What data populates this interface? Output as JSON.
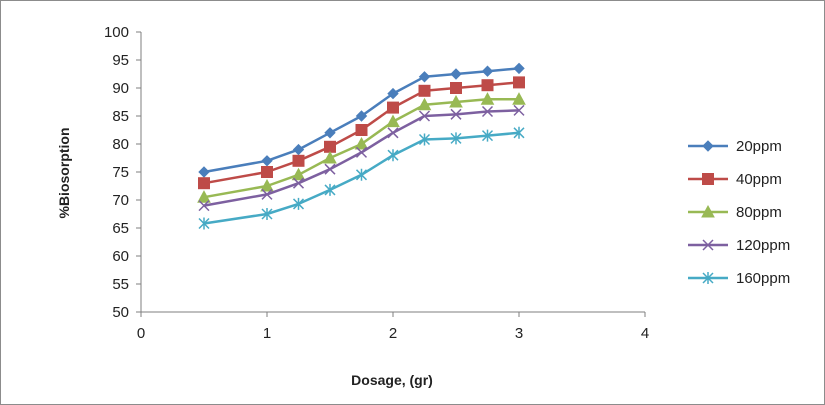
{
  "chart_data": {
    "type": "line",
    "title": "",
    "xlabel": "Dosage, (gr)",
    "ylabel": "%Biosorption",
    "xlim": [
      0,
      4
    ],
    "ylim": [
      50,
      100
    ],
    "x_ticks": [
      "0",
      "1",
      "2",
      "3",
      "4"
    ],
    "y_ticks": [
      "50",
      "55",
      "60",
      "65",
      "70",
      "75",
      "80",
      "85",
      "90",
      "95",
      "100"
    ],
    "grid": false,
    "legend_position": "right",
    "x": [
      0.5,
      1.0,
      1.25,
      1.5,
      1.75,
      2.0,
      2.25,
      2.5,
      2.75,
      3.0
    ],
    "series": [
      {
        "name": "20ppm",
        "color": "#4a7ebb",
        "marker": "diamond",
        "values": [
          75.0,
          77.0,
          79.0,
          82.0,
          85.0,
          89.0,
          92.0,
          92.5,
          93.0,
          93.5
        ]
      },
      {
        "name": "40ppm",
        "color": "#be4b48",
        "marker": "square",
        "values": [
          73.0,
          75.0,
          77.0,
          79.5,
          82.5,
          86.5,
          89.5,
          90.0,
          90.5,
          91.0
        ]
      },
      {
        "name": "80ppm",
        "color": "#98b954",
        "marker": "triangle",
        "values": [
          70.5,
          72.5,
          74.5,
          77.5,
          80.0,
          84.0,
          87.0,
          87.5,
          88.0,
          88.0
        ]
      },
      {
        "name": "120ppm",
        "color": "#7d60a0",
        "marker": "x",
        "values": [
          69.0,
          71.0,
          73.0,
          75.5,
          78.5,
          82.0,
          85.0,
          85.3,
          85.8,
          86.0
        ]
      },
      {
        "name": "160ppm",
        "color": "#46aac5",
        "marker": "star",
        "values": [
          65.8,
          67.5,
          69.3,
          71.8,
          74.5,
          78.0,
          80.8,
          81.0,
          81.5,
          82.0
        ]
      }
    ]
  }
}
